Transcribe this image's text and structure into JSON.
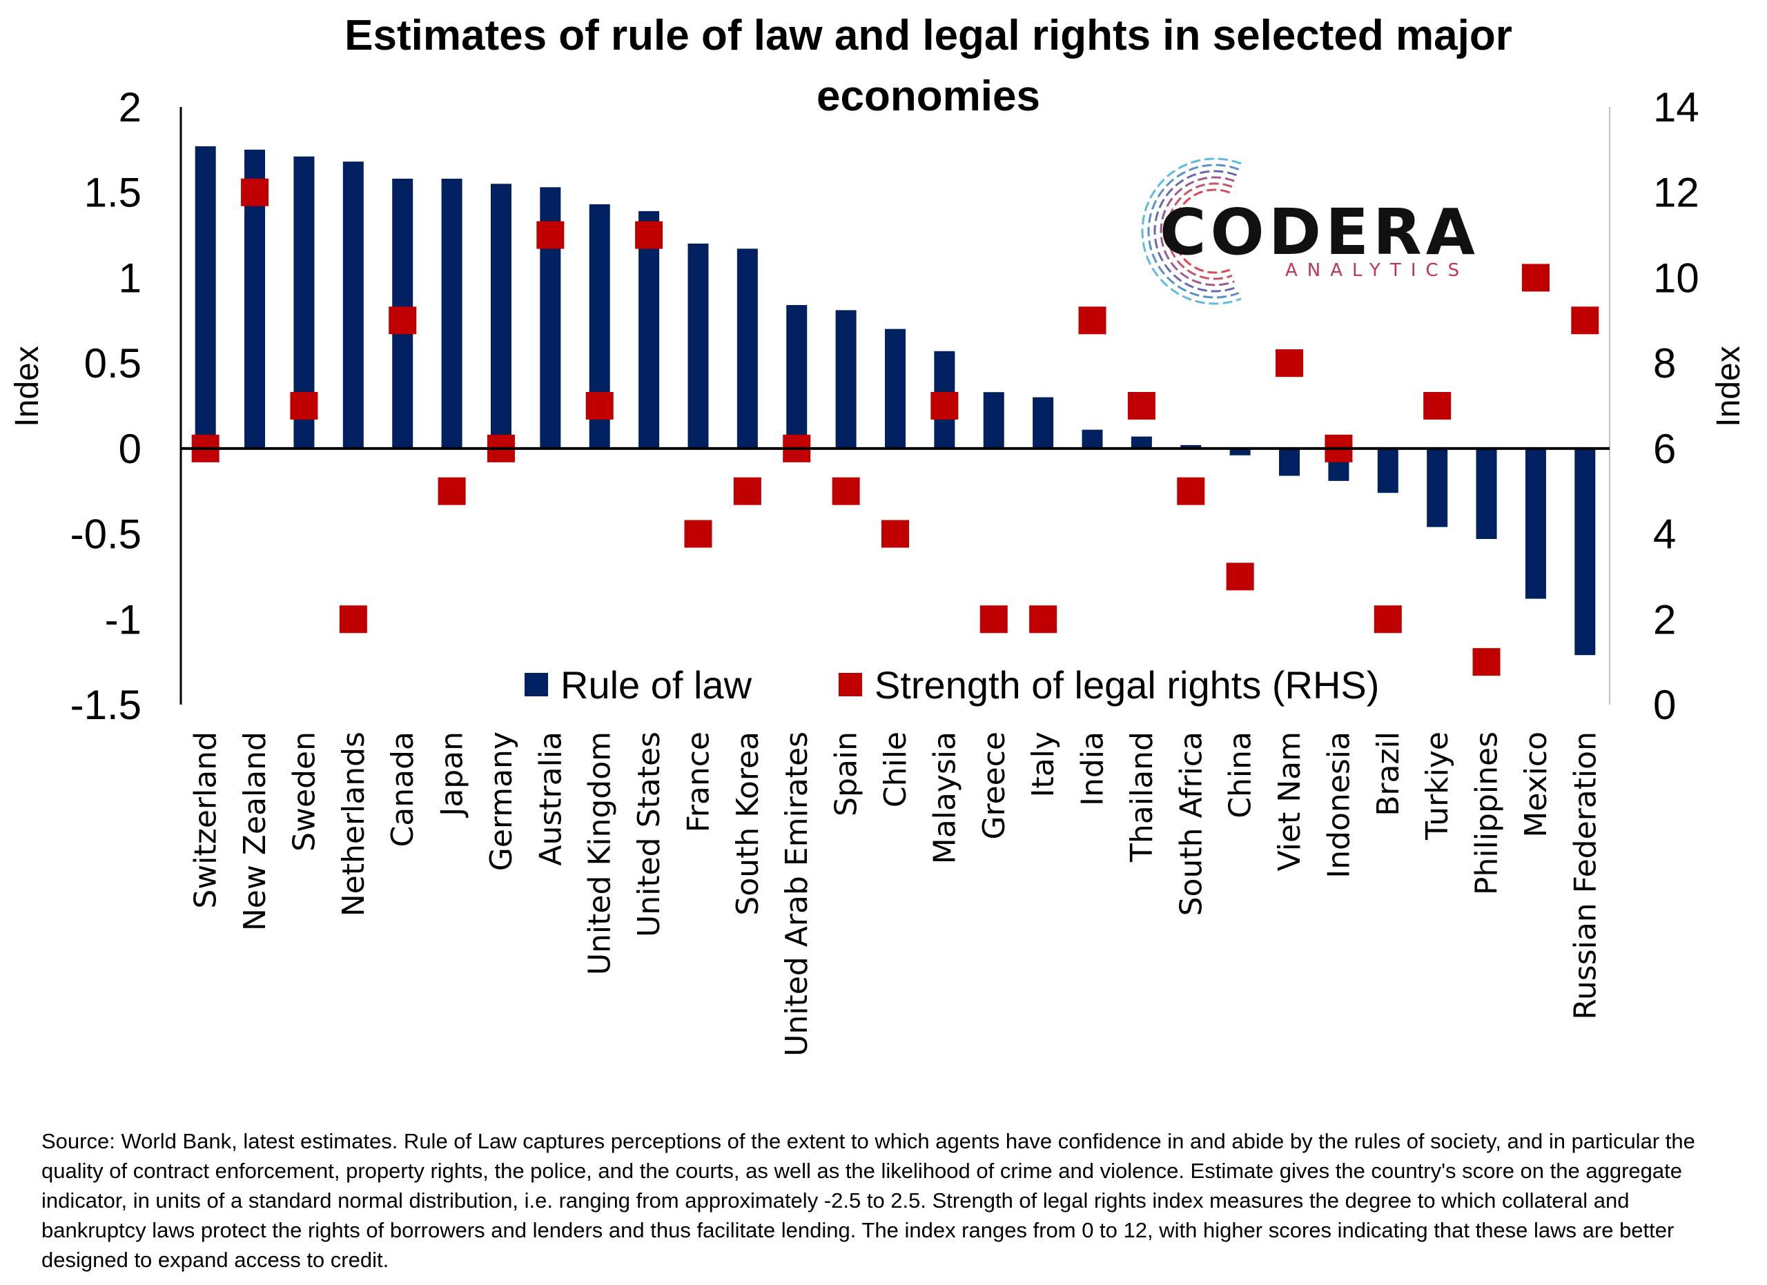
{
  "chart_data": {
    "type": "bar",
    "title": "Estimates of rule of law and legal rights in selected major economies",
    "title_lines": [
      "Estimates of rule of law and legal rights in selected major",
      "economies"
    ],
    "ylabel": "Index",
    "y2label": "Index",
    "ylim": [
      -1.5,
      2
    ],
    "y2lim": [
      0,
      14
    ],
    "yticks": [
      "2",
      "1.5",
      "1",
      "0.5",
      "0",
      "-0.5",
      "-1",
      "-1.5"
    ],
    "y2ticks": [
      "14",
      "12",
      "10",
      "8",
      "6",
      "4",
      "2",
      "0"
    ],
    "grid": false,
    "legend_position": "bottom-center",
    "categories": [
      "Switzerland",
      "New Zealand",
      "Sweden",
      "Netherlands",
      "Canada",
      "Japan",
      "Germany",
      "Australia",
      "United Kingdom",
      "United States",
      "France",
      "South Korea",
      "United Arab Emirates",
      "Spain",
      "Chile",
      "Malaysia",
      "Greece",
      "Italy",
      "India",
      "Thailand",
      "South Africa",
      "China",
      "Viet Nam",
      "Indonesia",
      "Brazil",
      "Turkiye",
      "Philippines",
      "Mexico",
      "Russian Federation"
    ],
    "series": [
      {
        "name": "Rule of law",
        "type": "bar",
        "axis": "left",
        "color": "#002060",
        "values": [
          1.77,
          1.75,
          1.71,
          1.68,
          1.58,
          1.58,
          1.55,
          1.53,
          1.43,
          1.39,
          1.2,
          1.17,
          0.84,
          0.81,
          0.7,
          0.57,
          0.33,
          0.3,
          0.11,
          0.07,
          0.02,
          -0.04,
          -0.16,
          -0.19,
          -0.26,
          -0.46,
          -0.53,
          -0.88,
          -1.21
        ]
      },
      {
        "name": "Strength of legal rights (RHS)",
        "type": "marker",
        "axis": "right",
        "color": "#C00000",
        "values": [
          6,
          12,
          7,
          2,
          9,
          5,
          6,
          11,
          7,
          11,
          4,
          5,
          6,
          5,
          4,
          7,
          2,
          2,
          9,
          7,
          5,
          3,
          8,
          6,
          2,
          7,
          1,
          10,
          9
        ]
      }
    ]
  },
  "logo": {
    "name": "CODERA",
    "subtitle": "ANALYTICS"
  },
  "footnote": "Source: World Bank, latest estimates. Rule of Law captures perceptions of the extent to which agents have confidence in and abide by the rules of society, and in particular the quality of contract enforcement, property rights, the police, and the courts, as well as the likelihood of crime and violence. Estimate gives the country's score on the aggregate indicator, in units of a standard normal distribution, i.e. ranging from approximately -2.5 to 2.5. Strength of legal rights index measures the degree to which collateral and bankruptcy laws protect the rights of borrowers and lenders and thus facilitate lending. The index ranges from 0 to 12, with higher scores indicating that these laws are better designed to expand access to credit."
}
